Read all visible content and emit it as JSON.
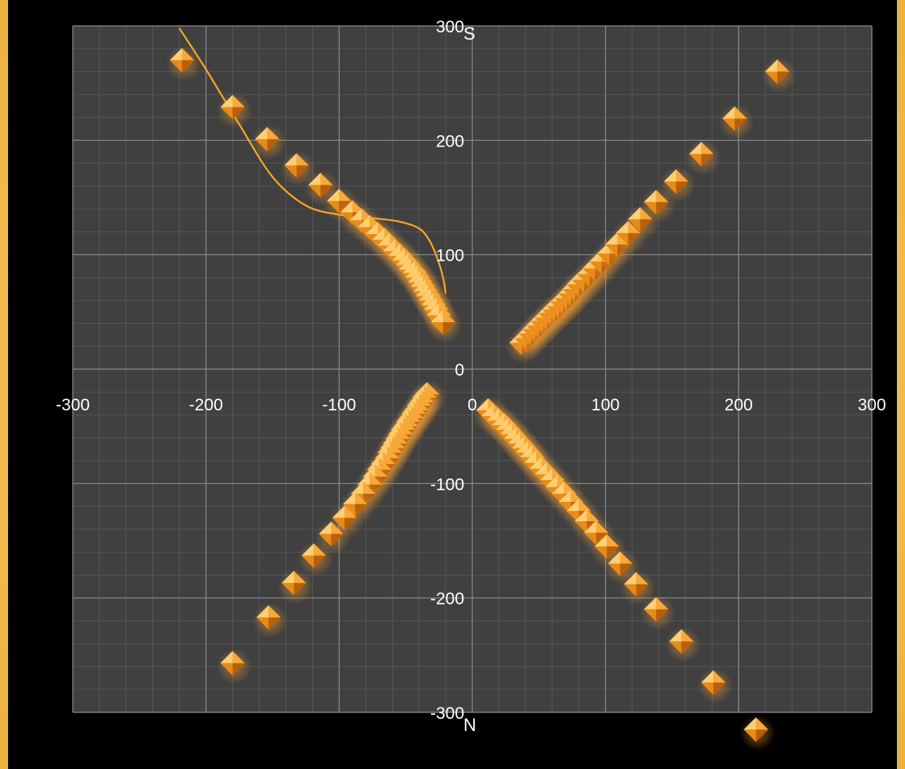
{
  "chart_data": {
    "type": "scatter",
    "xlim": [
      -300,
      300
    ],
    "ylim": [
      -300,
      300
    ],
    "x_ticks": [
      "-300",
      "-200",
      "-100",
      "0",
      "100",
      "200",
      "300"
    ],
    "y_ticks": [
      "300",
      "200",
      "100",
      "0",
      "-100",
      "-200",
      "-300"
    ],
    "top_label": "S",
    "bottom_label": "N",
    "grid": true,
    "colors": {
      "background": "#000000",
      "plot_area": "#404040",
      "grid_major": "#8a8a8a",
      "grid_minor": "#5a5a5a",
      "marker": "#f39a1f",
      "line": "#f5a623"
    },
    "series": [
      {
        "marker": "diamond",
        "x": [
          -218,
          -180,
          -154,
          -132,
          -114,
          -100,
          -90,
          -83,
          -77,
          -71,
          -66,
          -62,
          -58,
          -54,
          -51,
          -48,
          -46,
          -43,
          -41,
          -39,
          -37,
          -35,
          -33,
          -31,
          -29,
          -27,
          -25,
          -22
        ],
        "y": [
          270,
          229,
          201,
          178,
          161,
          147,
          137,
          130,
          124,
          118,
          113,
          108,
          103,
          99,
          95,
          91,
          87,
          84,
          80,
          76,
          72,
          68,
          64,
          60,
          56,
          52,
          47,
          41
        ]
      },
      {
        "marker": "diamond",
        "x": [
          37,
          41,
          44,
          47,
          50,
          53,
          56,
          59,
          62,
          65,
          68,
          71,
          74,
          77,
          80,
          84,
          88,
          92,
          97,
          103,
          109,
          117,
          126,
          138,
          153,
          172,
          197,
          229
        ],
        "y": [
          23,
          27,
          31,
          35,
          38,
          42,
          45,
          49,
          52,
          55,
          59,
          62,
          66,
          70,
          74,
          78,
          83,
          88,
          94,
          101,
          109,
          119,
          131,
          146,
          164,
          188,
          219,
          260
        ]
      },
      {
        "marker": "diamond",
        "x": [
          -34,
          -36,
          -38,
          -40,
          -42,
          -44,
          -46,
          -48,
          -50,
          -52,
          -54,
          -56,
          -58,
          -60,
          -62,
          -64,
          -67,
          -70,
          -73,
          -77,
          -82,
          -88,
          -96,
          -106,
          -119,
          -134,
          -153,
          -180
        ],
        "y": [
          -22,
          -25,
          -29,
          -32,
          -36,
          -39,
          -43,
          -46,
          -50,
          -53,
          -57,
          -61,
          -65,
          -69,
          -73,
          -78,
          -83,
          -88,
          -94,
          -101,
          -109,
          -118,
          -130,
          -144,
          -163,
          -187,
          -217,
          -257
        ]
      },
      {
        "marker": "diamond",
        "x": [
          12,
          16,
          20,
          24,
          27,
          30,
          33,
          36,
          39,
          42,
          45,
          48,
          52,
          56,
          60,
          64,
          69,
          74,
          80,
          86,
          93,
          101,
          111,
          123,
          138,
          157,
          181,
          213
        ],
        "y": [
          -36,
          -41,
          -45,
          -49,
          -53,
          -57,
          -61,
          -65,
          -69,
          -73,
          -77,
          -82,
          -87,
          -92,
          -97,
          -103,
          -109,
          -116,
          -124,
          -133,
          -143,
          -155,
          -170,
          -188,
          -210,
          -238,
          -274,
          -315
        ]
      }
    ],
    "line": {
      "x": [
        -220,
        -200,
        -175,
        -150,
        -125,
        -100,
        -75,
        -55,
        -40,
        -32,
        -26,
        -22,
        -20
      ],
      "y": [
        298,
        262,
        214,
        168,
        143,
        135,
        132,
        129,
        123,
        112,
        96,
        80,
        66
      ]
    }
  }
}
